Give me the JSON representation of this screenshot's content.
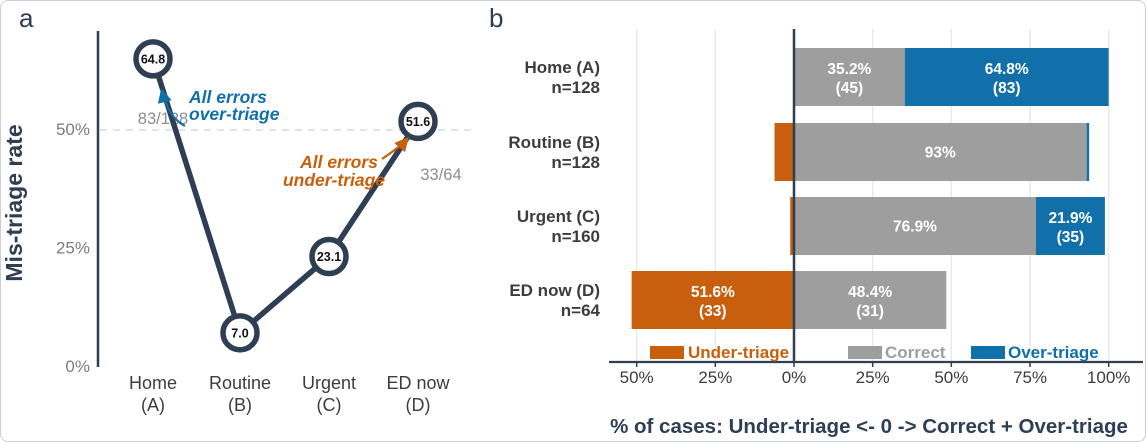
{
  "panels": {
    "a": "a",
    "b": "b"
  },
  "colors": {
    "navy": "#2e3f54",
    "blue": "#1170aa",
    "orange": "#c85f0d",
    "bar_gray": "#9e9e9e",
    "text_dark_gray": "#3d3d3d",
    "tick_gray": "#7c7c7c",
    "fraction_gray": "#8e8e8e",
    "grid": "#e9e9e9",
    "dash": "#dcdcdc",
    "point_label": "#111111",
    "white": "#ffffff"
  },
  "chart_data": [
    {
      "id": "a",
      "type": "line",
      "ylabel": "Mis-triage rate",
      "ylim": [
        0,
        70
      ],
      "yticks": [
        {
          "v": 0,
          "label": "0%"
        },
        {
          "v": 25,
          "label": "25%"
        },
        {
          "v": 50,
          "label": "50%"
        }
      ],
      "reference_line": 50,
      "grid": "dashed-50-only",
      "categories": [
        [
          "Home",
          "(A)"
        ],
        [
          "Routine",
          "(B)"
        ],
        [
          "Urgent",
          "(C)"
        ],
        [
          "ED now",
          "(D)"
        ]
      ],
      "values": [
        64.8,
        7.0,
        23.1,
        51.6
      ],
      "point_labels": [
        "64.8",
        "7.0",
        "23.1",
        "51.6"
      ],
      "annotations": [
        {
          "id": "over",
          "lines": [
            "All errors",
            "over-triage"
          ],
          "color_key": "blue",
          "fraction": "83/128"
        },
        {
          "id": "under",
          "lines": [
            "All errors",
            "under-triage"
          ],
          "color_key": "orange",
          "fraction": "33/64"
        }
      ]
    },
    {
      "id": "b",
      "type": "bar",
      "stacking": "diverging-horizontal",
      "xlabel": "% of cases: Under-triage <- 0 -> Correct + Over-triage",
      "xlim": [
        -50,
        100
      ],
      "xticks": [
        {
          "v": -50,
          "label": "50%"
        },
        {
          "v": -25,
          "label": "25%"
        },
        {
          "v": 0,
          "label": "0%"
        },
        {
          "v": 25,
          "label": "25%"
        },
        {
          "v": 50,
          "label": "50%"
        },
        {
          "v": 75,
          "label": "75%"
        },
        {
          "v": 100,
          "label": "100%"
        }
      ],
      "rows": [
        {
          "label": "Home (A)",
          "n": "n=128",
          "under": 0,
          "correct": 35.2,
          "over": 64.8,
          "seg_labels": {
            "correct": [
              "35.2%",
              "(45)"
            ],
            "over": [
              "64.8%",
              "(83)"
            ]
          }
        },
        {
          "label": "Routine (B)",
          "n": "n=128",
          "under": 6.2,
          "correct": 93,
          "over": 0.8,
          "seg_labels": {
            "correct": [
              "93%"
            ]
          }
        },
        {
          "label": "Urgent (C)",
          "n": "n=160",
          "under": 1.2,
          "correct": 76.9,
          "over": 21.9,
          "seg_labels": {
            "correct": [
              "76.9%"
            ],
            "over": [
              "21.9%",
              "(35)"
            ]
          }
        },
        {
          "label": "ED now (D)",
          "n": "n=64",
          "under": 51.6,
          "correct": 48.4,
          "over": 0,
          "seg_labels": {
            "under": [
              "51.6%",
              "(33)"
            ],
            "correct": [
              "48.4%",
              "(31)"
            ]
          }
        }
      ],
      "legend": [
        {
          "key": "under",
          "label": "Under-triage",
          "color_key": "orange"
        },
        {
          "key": "correct",
          "label": "Correct",
          "color_key": "bar_gray"
        },
        {
          "key": "over",
          "label": "Over-triage",
          "color_key": "blue"
        }
      ]
    }
  ]
}
